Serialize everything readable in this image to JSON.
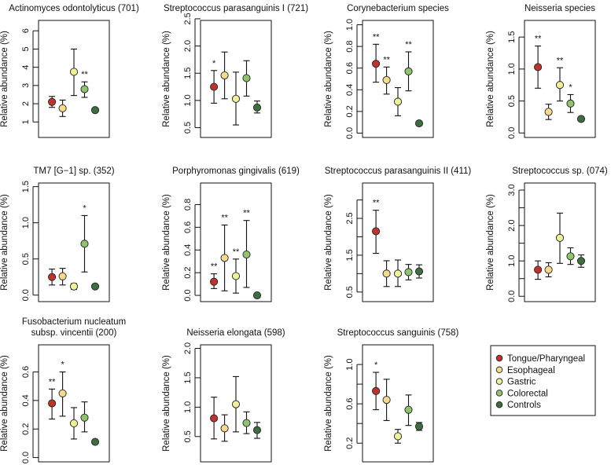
{
  "chart_data": {
    "type": "scatter",
    "subtype": "point-with-error-bars",
    "groups": [
      "Tongue/Pharyngeal",
      "Esophageal",
      "Gastric",
      "Colorectal",
      "Controls"
    ],
    "colors": [
      "#c0322c",
      "#f5d98c",
      "#eef09a",
      "#8fc46c",
      "#3e6e40"
    ],
    "ylabel": "Relative abundance (%)",
    "legend": {
      "position": "bottom-right",
      "entries": [
        "Tongue/Pharyngeal",
        "Esophageal",
        "Gastric",
        "Colorectal",
        "Controls"
      ]
    },
    "panels": [
      {
        "title": [
          "Actinomyces odontolyticus (701)"
        ],
        "ylim": [
          0.15,
          6.57
        ],
        "ticks": [
          1,
          2,
          3,
          4,
          5,
          6
        ],
        "tick_labels": [
          "1",
          "2",
          "3",
          "4",
          "5",
          "6"
        ],
        "values": [
          2.1,
          1.75,
          3.75,
          2.8,
          1.65
        ],
        "lower": [
          1.8,
          1.3,
          2.45,
          2.35,
          1.55
        ],
        "upper": [
          2.4,
          2.2,
          5.0,
          3.2,
          1.75
        ],
        "stars": [
          "",
          "",
          "",
          "**",
          ""
        ]
      },
      {
        "title": [
          "Streptococcus parasanguinis I (721)"
        ],
        "ylim": [
          0.32,
          2.47
        ],
        "ticks": [
          0.5,
          1.0,
          1.5,
          2.0,
          2.5
        ],
        "tick_labels": [
          "0.5",
          "1.0",
          "1.5",
          "2.0",
          "2.5"
        ],
        "values": [
          1.25,
          1.46,
          1.03,
          1.41,
          0.87
        ],
        "lower": [
          0.95,
          1.03,
          0.55,
          1.08,
          0.77
        ],
        "upper": [
          1.55,
          1.89,
          1.52,
          1.73,
          0.99
        ],
        "stars": [
          "*",
          "",
          "",
          "",
          ""
        ]
      },
      {
        "title": [
          "Corynebacterium species"
        ],
        "ylim": [
          -0.04,
          1.04
        ],
        "ticks": [
          0,
          0.2,
          0.4,
          0.6,
          0.8,
          1.0
        ],
        "tick_labels": [
          "0.0",
          "0.2",
          "0.4",
          "0.6",
          "0.8",
          "1.0"
        ],
        "values": [
          0.64,
          0.49,
          0.29,
          0.57,
          0.09
        ],
        "lower": [
          0.47,
          0.36,
          0.16,
          0.39,
          0.08
        ],
        "upper": [
          0.82,
          0.61,
          0.42,
          0.75,
          0.1
        ],
        "stars": [
          "**",
          "**",
          "",
          "**",
          ""
        ]
      },
      {
        "title": [
          "Neisseria species"
        ],
        "ylim": [
          -0.07,
          1.76
        ],
        "ticks": [
          0,
          0.5,
          1.0,
          1.5
        ],
        "tick_labels": [
          "0.0",
          "0.5",
          "1.0",
          "1.5"
        ],
        "values": [
          1.03,
          0.33,
          0.75,
          0.46,
          0.22
        ],
        "lower": [
          0.7,
          0.21,
          0.5,
          0.32,
          0.2
        ],
        "upper": [
          1.36,
          0.45,
          1.02,
          0.6,
          0.24
        ],
        "stars": [
          "**",
          "",
          "**",
          "*",
          ""
        ]
      },
      {
        "title": [
          "TM7 [G−1] sp. (352)"
        ],
        "ylim": [
          -0.09,
          1.55
        ],
        "ticks": [
          0,
          0.5,
          1.0,
          1.5
        ],
        "tick_labels": [
          "0.0",
          "0.5",
          "1.0",
          "1.5"
        ],
        "values": [
          0.25,
          0.26,
          0.12,
          0.71,
          0.12
        ],
        "lower": [
          0.14,
          0.14,
          0.08,
          0.32,
          0.11
        ],
        "upper": [
          0.36,
          0.37,
          0.16,
          1.1,
          0.13
        ],
        "stars": [
          "",
          "",
          "",
          "*",
          ""
        ]
      },
      {
        "title": [
          "Porphyromonas gingivalis (619)"
        ],
        "ylim": [
          -0.055,
          0.99
        ],
        "ticks": [
          0,
          0.2,
          0.4,
          0.6,
          0.8
        ],
        "tick_labels": [
          "0.0",
          "0.2",
          "0.4",
          "0.6",
          "0.8"
        ],
        "values": [
          0.12,
          0.33,
          0.17,
          0.36,
          0.0
        ],
        "lower": [
          0.06,
          0.04,
          0.02,
          0.07,
          0.0
        ],
        "upper": [
          0.19,
          0.62,
          0.32,
          0.66,
          0.0
        ],
        "stars": [
          "**",
          "**",
          "**",
          "**",
          ""
        ]
      },
      {
        "title": [
          "Streptococcus parasanguinis II (411)"
        ],
        "ylim": [
          0.24,
          3.46
        ],
        "ticks": [
          0.5,
          1.0,
          1.5,
          2.0,
          2.5,
          3.0
        ],
        "tick_labels": [
          "0.5",
          "",
          "1.5",
          "",
          "2.5",
          ""
        ],
        "values": [
          2.15,
          1.0,
          1.0,
          1.04,
          1.06
        ],
        "lower": [
          1.55,
          0.65,
          0.65,
          0.83,
          0.88
        ],
        "upper": [
          2.72,
          1.35,
          1.37,
          1.25,
          1.24
        ],
        "stars": [
          "**",
          "",
          "",
          "",
          ""
        ]
      },
      {
        "title": [
          "Streptococcus sp. (074)"
        ],
        "ylim": [
          -0.15,
          3.2
        ],
        "ticks": [
          0,
          0.5,
          1.0,
          1.5,
          2.0,
          2.5,
          3.0
        ],
        "tick_labels": [
          "0.0",
          "",
          "1.0",
          "",
          "2.0",
          "",
          "3.0"
        ],
        "values": [
          0.75,
          0.75,
          1.65,
          1.13,
          1.0
        ],
        "lower": [
          0.48,
          0.55,
          0.93,
          0.9,
          0.82
        ],
        "upper": [
          1.0,
          0.95,
          2.35,
          1.37,
          1.17
        ],
        "stars": [
          "",
          "",
          "",
          "",
          ""
        ]
      },
      {
        "title": [
          "Fusobacterium nucleatum",
          "subsp. vincentii (200)"
        ],
        "ylim": [
          -0.03,
          0.79
        ],
        "ticks": [
          0,
          0.2,
          0.4,
          0.6
        ],
        "tick_labels": [
          "0.0",
          "0.2",
          "0.4",
          "0.6"
        ],
        "values": [
          0.38,
          0.45,
          0.24,
          0.28,
          0.11
        ],
        "lower": [
          0.27,
          0.29,
          0.13,
          0.18,
          0.1
        ],
        "upper": [
          0.48,
          0.6,
          0.35,
          0.39,
          0.12
        ],
        "stars": [
          "**",
          "*",
          "",
          "",
          ""
        ]
      },
      {
        "title": [
          "Neisseria elongata (598)"
        ],
        "ylim": [
          0.07,
          2.06
        ],
        "ticks": [
          0.5,
          1.0,
          1.5,
          2.0
        ],
        "tick_labels": [
          "0.5",
          "1.0",
          "1.5",
          "2.0"
        ],
        "values": [
          0.81,
          0.64,
          1.05,
          0.73,
          0.61
        ],
        "lower": [
          0.46,
          0.42,
          0.58,
          0.55,
          0.47
        ],
        "upper": [
          1.17,
          0.87,
          1.52,
          0.92,
          0.74
        ],
        "stars": [
          "",
          "",
          "",
          "",
          ""
        ]
      },
      {
        "title": [
          "Streptococcus sanguinis (758)"
        ],
        "ylim": [
          0.01,
          1.2
        ],
        "ticks": [
          0.2,
          0.4,
          0.6,
          0.8,
          1.0
        ],
        "tick_labels": [
          "0.2",
          "",
          "0.6",
          "",
          "1.0"
        ],
        "values": [
          0.73,
          0.64,
          0.27,
          0.54,
          0.37
        ],
        "lower": [
          0.54,
          0.43,
          0.2,
          0.38,
          0.33
        ],
        "upper": [
          0.92,
          0.85,
          0.34,
          0.69,
          0.41
        ],
        "stars": [
          "*",
          "",
          "",
          "",
          ""
        ]
      }
    ]
  }
}
